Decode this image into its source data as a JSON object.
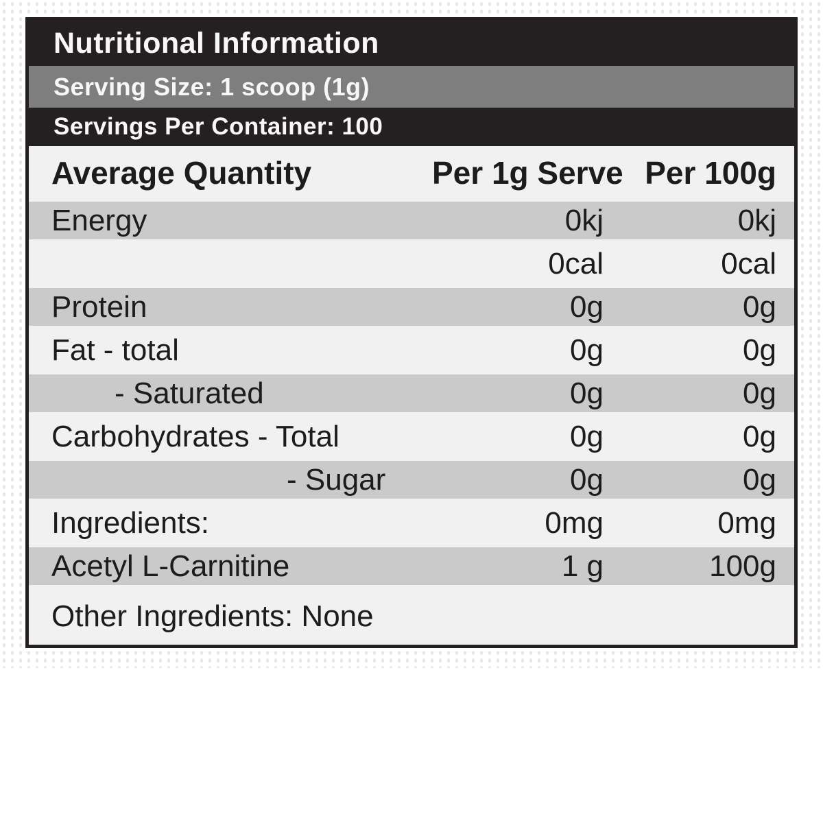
{
  "label": {
    "title": "Nutritional Information",
    "serving_size": "Serving Size: 1 scoop (1g)",
    "servings_per_container": "Servings Per Container: 100",
    "columns": [
      "Average Quantity",
      "Per 1g Serve",
      "Per 100g"
    ],
    "rows": [
      {
        "name": "Energy",
        "per_serve": "0kj",
        "per_100g": "0kj",
        "shade": "gray",
        "indent": 0
      },
      {
        "name": "",
        "per_serve": "0cal",
        "per_100g": "0cal",
        "shade": "light",
        "indent": 0
      },
      {
        "name": "Protein",
        "per_serve": "0g",
        "per_100g": "0g",
        "shade": "gray",
        "indent": 0
      },
      {
        "name": "Fat - total",
        "per_serve": "0g",
        "per_100g": "0g",
        "shade": "light",
        "indent": 0
      },
      {
        "name": "- Saturated",
        "per_serve": "0g",
        "per_100g": "0g",
        "shade": "gray",
        "indent": 1
      },
      {
        "name": "Carbohydrates - Total",
        "per_serve": "0g",
        "per_100g": "0g",
        "shade": "light",
        "indent": 0
      },
      {
        "name": "- Sugar",
        "per_serve": "0g",
        "per_100g": "0g",
        "shade": "gray",
        "indent": 2
      },
      {
        "name": "Ingredients:",
        "per_serve": "0mg",
        "per_100g": "0mg",
        "shade": "light",
        "indent": 0
      },
      {
        "name": "Acetyl L-Carnitine",
        "per_serve": "1 g",
        "per_100g": "100g",
        "shade": "gray",
        "indent": 0
      },
      {
        "name": "Other Ingredients: None",
        "per_serve": "",
        "per_100g": "",
        "shade": "light",
        "indent": 0,
        "full_width": true
      }
    ],
    "colors": {
      "bar_black": "#241f21",
      "bar_gray": "#7e7e7e",
      "row_gray": "#cacaca",
      "row_light": "#f1f1f1",
      "text_dark": "#1d1b1c",
      "text_light": "#f7f7f7",
      "dot": "#e7e7e7"
    }
  }
}
